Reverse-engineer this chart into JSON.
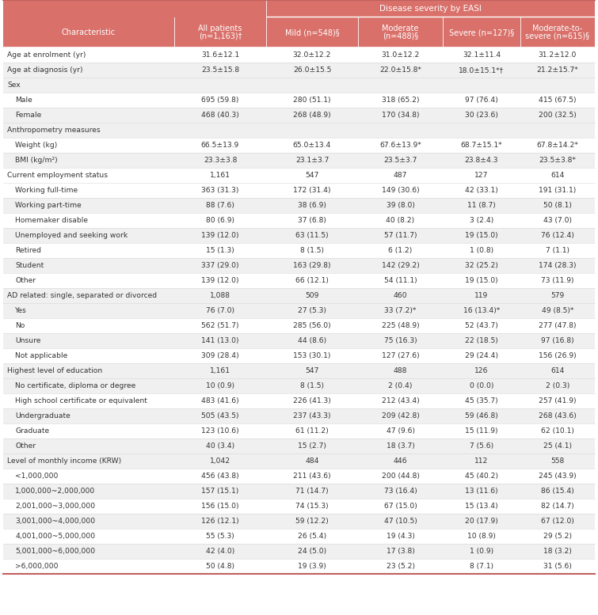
{
  "header_bg": "#D9706A",
  "alt_bg": "#F0F0F0",
  "white_bg": "#FFFFFF",
  "section_bg": "#F0F0F0",
  "header_text_color": "#FFFFFF",
  "body_text_color": "#333333",
  "col_headers": [
    "Characteristic",
    "All patients\n(n=1,163)†",
    "Mild (n=548)§",
    "Moderate\n(n=488)§",
    "Severe (n=127)§",
    "Moderate-to-\nsevere (n=615)§"
  ],
  "rows": [
    {
      "label": "Age at enrolment (yr)",
      "indent": 0,
      "section": false,
      "alt": false,
      "bold": false,
      "cols": [
        "31.6±12.1",
        "32.0±12.2",
        "31.0±12.2",
        "32.1±11.4",
        "31.2±12.0"
      ]
    },
    {
      "label": "Age at diagnosis (yr)",
      "indent": 0,
      "section": false,
      "alt": true,
      "bold": false,
      "cols": [
        "23.5±15.8",
        "26.0±15.5",
        "22.0±15.8*",
        "18.0±15.1*†",
        "21.2±15.7*"
      ]
    },
    {
      "label": "Sex",
      "indent": 0,
      "section": true,
      "alt": false,
      "bold": false,
      "cols": [
        "",
        "",
        "",
        "",
        ""
      ]
    },
    {
      "label": "Male",
      "indent": 1,
      "section": false,
      "alt": false,
      "bold": false,
      "cols": [
        "695 (59.8)",
        "280 (51.1)",
        "318 (65.2)",
        "97 (76.4)",
        "415 (67.5)"
      ]
    },
    {
      "label": "Female",
      "indent": 1,
      "section": false,
      "alt": true,
      "bold": false,
      "cols": [
        "468 (40.3)",
        "268 (48.9)",
        "170 (34.8)",
        "30 (23.6)",
        "200 (32.5)"
      ]
    },
    {
      "label": "Anthropometry measures",
      "indent": 0,
      "section": true,
      "alt": false,
      "bold": false,
      "cols": [
        "",
        "",
        "",
        "",
        ""
      ]
    },
    {
      "label": "Weight (kg)",
      "indent": 1,
      "section": false,
      "alt": false,
      "bold": false,
      "cols": [
        "66.5±13.9",
        "65.0±13.4",
        "67.6±13.9*",
        "68.7±15.1*",
        "67.8±14.2*"
      ]
    },
    {
      "label": "BMI (kg/m²)",
      "indent": 1,
      "section": false,
      "alt": true,
      "bold": false,
      "cols": [
        "23.3±3.8",
        "23.1±3.7",
        "23.5±3.7",
        "23.8±4.3",
        "23.5±3.8*"
      ]
    },
    {
      "label": "Current employment status",
      "indent": 0,
      "section": false,
      "alt": false,
      "bold": false,
      "cols": [
        "1,161",
        "547",
        "487",
        "127",
        "614"
      ]
    },
    {
      "label": "Working full-time",
      "indent": 1,
      "section": false,
      "alt": false,
      "bold": false,
      "cols": [
        "363 (31.3)",
        "172 (31.4)",
        "149 (30.6)",
        "42 (33.1)",
        "191 (31.1)"
      ]
    },
    {
      "label": "Working part-time",
      "indent": 1,
      "section": false,
      "alt": true,
      "bold": false,
      "cols": [
        "88 (7.6)",
        "38 (6.9)",
        "39 (8.0)",
        "11 (8.7)",
        "50 (8.1)"
      ]
    },
    {
      "label": "Homemaker disable",
      "indent": 1,
      "section": false,
      "alt": false,
      "bold": false,
      "cols": [
        "80 (6.9)",
        "37 (6.8)",
        "40 (8.2)",
        "3 (2.4)",
        "43 (7.0)"
      ]
    },
    {
      "label": "Unemployed and seeking work",
      "indent": 1,
      "section": false,
      "alt": true,
      "bold": false,
      "cols": [
        "139 (12.0)",
        "63 (11.5)",
        "57 (11.7)",
        "19 (15.0)",
        "76 (12.4)"
      ]
    },
    {
      "label": "Retired",
      "indent": 1,
      "section": false,
      "alt": false,
      "bold": false,
      "cols": [
        "15 (1.3)",
        "8 (1.5)",
        "6 (1.2)",
        "1 (0.8)",
        "7 (1.1)"
      ]
    },
    {
      "label": "Student",
      "indent": 1,
      "section": false,
      "alt": true,
      "bold": false,
      "cols": [
        "337 (29.0)",
        "163 (29.8)",
        "142 (29.2)",
        "32 (25.2)",
        "174 (28.3)"
      ]
    },
    {
      "label": "Other",
      "indent": 1,
      "section": false,
      "alt": false,
      "bold": false,
      "cols": [
        "139 (12.0)",
        "66 (12.1)",
        "54 (11.1)",
        "19 (15.0)",
        "73 (11.9)"
      ]
    },
    {
      "label": "AD related: single, separated or divorced",
      "indent": 0,
      "section": false,
      "alt": true,
      "bold": false,
      "cols": [
        "1,088",
        "509",
        "460",
        "119",
        "579"
      ]
    },
    {
      "label": "Yes",
      "indent": 1,
      "section": false,
      "alt": true,
      "bold": false,
      "cols": [
        "76 (7.0)",
        "27 (5.3)",
        "33 (7.2)*",
        "16 (13.4)*",
        "49 (8.5)*"
      ]
    },
    {
      "label": "No",
      "indent": 1,
      "section": false,
      "alt": false,
      "bold": false,
      "cols": [
        "562 (51.7)",
        "285 (56.0)",
        "225 (48.9)",
        "52 (43.7)",
        "277 (47.8)"
      ]
    },
    {
      "label": "Unsure",
      "indent": 1,
      "section": false,
      "alt": true,
      "bold": false,
      "cols": [
        "141 (13.0)",
        "44 (8.6)",
        "75 (16.3)",
        "22 (18.5)",
        "97 (16.8)"
      ]
    },
    {
      "label": "Not applicable",
      "indent": 1,
      "section": false,
      "alt": false,
      "bold": false,
      "cols": [
        "309 (28.4)",
        "153 (30.1)",
        "127 (27.6)",
        "29 (24.4)",
        "156 (26.9)"
      ]
    },
    {
      "label": "Highest level of education",
      "indent": 0,
      "section": false,
      "alt": true,
      "bold": false,
      "cols": [
        "1,161",
        "547",
        "488",
        "126",
        "614"
      ]
    },
    {
      "label": "No certificate, diploma or degree",
      "indent": 1,
      "section": false,
      "alt": true,
      "bold": false,
      "cols": [
        "10 (0.9)",
        "8 (1.5)",
        "2 (0.4)",
        "0 (0.0)",
        "2 (0.3)"
      ]
    },
    {
      "label": "High school certificate or equivalent",
      "indent": 1,
      "section": false,
      "alt": false,
      "bold": false,
      "cols": [
        "483 (41.6)",
        "226 (41.3)",
        "212 (43.4)",
        "45 (35.7)",
        "257 (41.9)"
      ]
    },
    {
      "label": "Undergraduate",
      "indent": 1,
      "section": false,
      "alt": true,
      "bold": false,
      "cols": [
        "505 (43.5)",
        "237 (43.3)",
        "209 (42.8)",
        "59 (46.8)",
        "268 (43.6)"
      ]
    },
    {
      "label": "Graduate",
      "indent": 1,
      "section": false,
      "alt": false,
      "bold": false,
      "cols": [
        "123 (10.6)",
        "61 (11.2)",
        "47 (9.6)",
        "15 (11.9)",
        "62 (10.1)"
      ]
    },
    {
      "label": "Other",
      "indent": 1,
      "section": false,
      "alt": true,
      "bold": false,
      "cols": [
        "40 (3.4)",
        "15 (2.7)",
        "18 (3.7)",
        "7 (5.6)",
        "25 (4.1)"
      ]
    },
    {
      "label": "Level of monthly income (KRW)",
      "indent": 0,
      "section": true,
      "alt": false,
      "bold": false,
      "cols": [
        "1,042",
        "484",
        "446",
        "112",
        "558"
      ]
    },
    {
      "label": "<1,000,000",
      "indent": 1,
      "section": false,
      "alt": false,
      "bold": false,
      "cols": [
        "456 (43.8)",
        "211 (43.6)",
        "200 (44.8)",
        "45 (40.2)",
        "245 (43.9)"
      ]
    },
    {
      "label": "1,000,000~2,000,000",
      "indent": 1,
      "section": false,
      "alt": true,
      "bold": false,
      "cols": [
        "157 (15.1)",
        "71 (14.7)",
        "73 (16.4)",
        "13 (11.6)",
        "86 (15.4)"
      ]
    },
    {
      "label": "2,001,000~3,000,000",
      "indent": 1,
      "section": false,
      "alt": false,
      "bold": false,
      "cols": [
        "156 (15.0)",
        "74 (15.3)",
        "67 (15.0)",
        "15 (13.4)",
        "82 (14.7)"
      ]
    },
    {
      "label": "3,001,000~4,000,000",
      "indent": 1,
      "section": false,
      "alt": true,
      "bold": false,
      "cols": [
        "126 (12.1)",
        "59 (12.2)",
        "47 (10.5)",
        "20 (17.9)",
        "67 (12.0)"
      ]
    },
    {
      "label": "4,001,000~5,000,000",
      "indent": 1,
      "section": false,
      "alt": false,
      "bold": false,
      "cols": [
        "55 (5.3)",
        "26 (5.4)",
        "19 (4.3)",
        "10 (8.9)",
        "29 (5.2)"
      ]
    },
    {
      "label": "5,001,000~6,000,000",
      "indent": 1,
      "section": false,
      "alt": true,
      "bold": false,
      "cols": [
        "42 (4.0)",
        "24 (5.0)",
        "17 (3.8)",
        "1 (0.9)",
        "18 (3.2)"
      ]
    },
    {
      "label": ">6,000,000",
      "indent": 1,
      "section": false,
      "alt": false,
      "bold": false,
      "cols": [
        "50 (4.8)",
        "19 (3.9)",
        "23 (5.2)",
        "8 (7.1)",
        "31 (5.6)"
      ]
    }
  ]
}
